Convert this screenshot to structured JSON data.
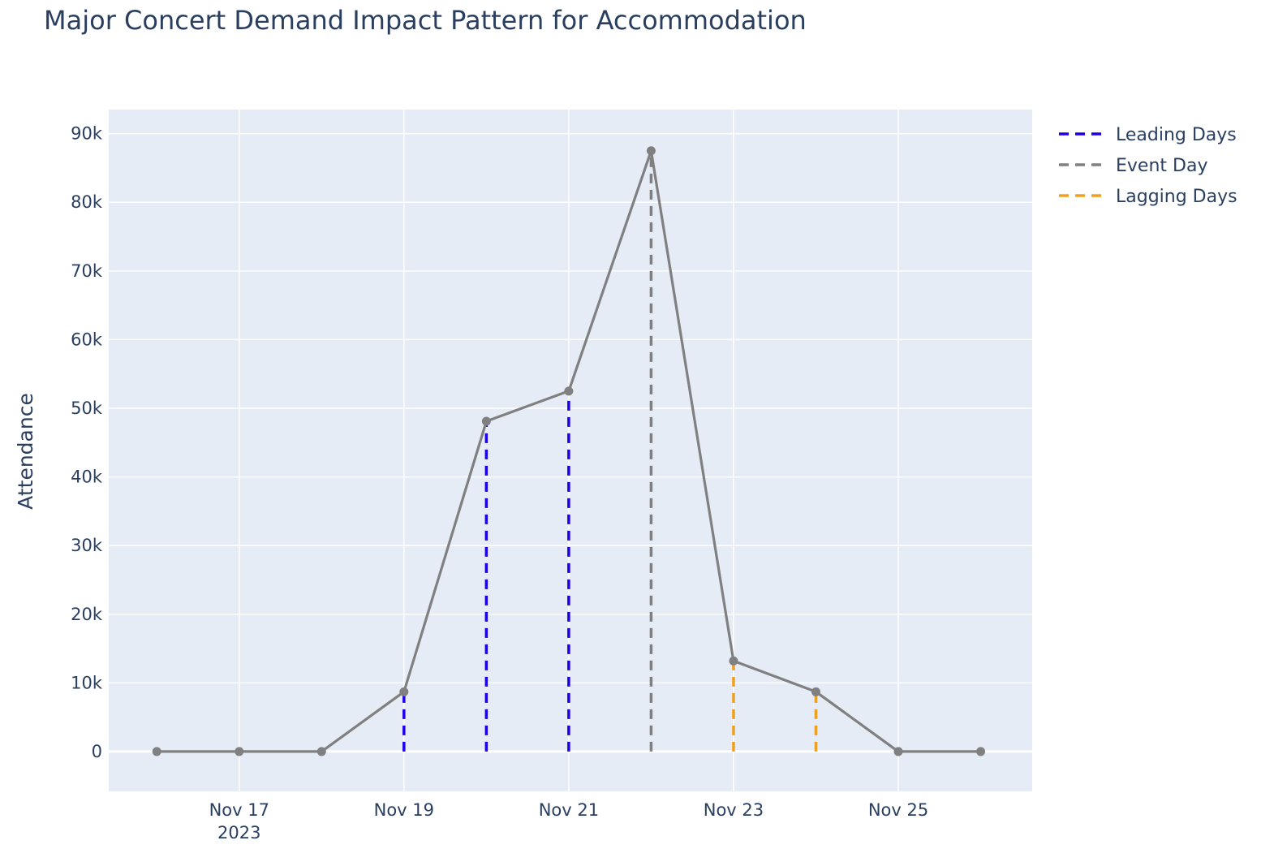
{
  "chart_data": {
    "type": "line",
    "title": "Major Concert  Demand Impact Pattern for Accommodation",
    "xlabel": "",
    "ylabel": "Attendance",
    "x_tick_labels": [
      "Nov 17",
      "Nov 19",
      "Nov 21",
      "Nov 23",
      "Nov 25"
    ],
    "x_tick_dates": [
      "2023-11-17",
      "2023-11-19",
      "2023-11-21",
      "2023-11-23",
      "2023-11-25"
    ],
    "x_year_label": "2023",
    "xlim": [
      "2023-11-15T10:00",
      "2023-11-26T15:00"
    ],
    "y_tick_values": [
      0,
      10000,
      20000,
      30000,
      40000,
      50000,
      60000,
      70000,
      80000,
      90000
    ],
    "y_tick_labels": [
      "0",
      "10k",
      "20k",
      "30k",
      "40k",
      "50k",
      "60k",
      "70k",
      "80k",
      "90k"
    ],
    "ylim": [
      -5800,
      93500
    ],
    "grid": true,
    "legend_position": "top-right",
    "series": [
      {
        "name": "Attendance",
        "type": "line+markers",
        "color": "#808080",
        "show_in_legend": false,
        "points": [
          {
            "x": "2023-11-16",
            "y": 0
          },
          {
            "x": "2023-11-17",
            "y": 0
          },
          {
            "x": "2023-11-18",
            "y": 0
          },
          {
            "x": "2023-11-19",
            "y": 8700
          },
          {
            "x": "2023-11-20",
            "y": 48100
          },
          {
            "x": "2023-11-21",
            "y": 52500
          },
          {
            "x": "2023-11-22",
            "y": 87500
          },
          {
            "x": "2023-11-23",
            "y": 13200
          },
          {
            "x": "2023-11-24",
            "y": 8700
          },
          {
            "x": "2023-11-25",
            "y": 0
          },
          {
            "x": "2023-11-26",
            "y": 0
          }
        ]
      },
      {
        "name": "Leading Days",
        "type": "vertical-dashed",
        "color": "#1f00e6",
        "points": [
          {
            "x": "2023-11-19",
            "y": 8700
          },
          {
            "x": "2023-11-20",
            "y": 48100
          },
          {
            "x": "2023-11-21",
            "y": 52500
          }
        ]
      },
      {
        "name": "Event Day",
        "type": "vertical-dashed",
        "color": "#808080",
        "points": [
          {
            "x": "2023-11-22",
            "y": 87500
          }
        ]
      },
      {
        "name": "Lagging Days",
        "type": "vertical-dashed",
        "color": "#f0a020",
        "points": [
          {
            "x": "2023-11-23",
            "y": 13200
          },
          {
            "x": "2023-11-24",
            "y": 8700
          }
        ]
      }
    ]
  }
}
